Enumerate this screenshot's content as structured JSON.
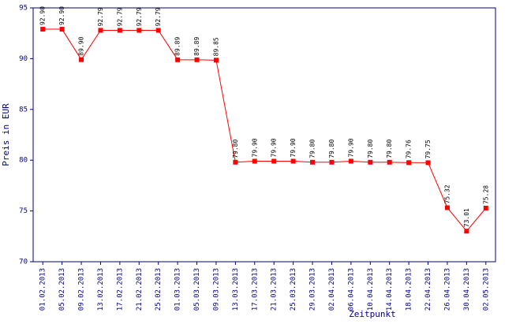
{
  "chart_data": {
    "type": "line",
    "x_label": "Zeitpunkt",
    "y_label": "Preis in EUR",
    "categories": [
      "01.02.2013",
      "05.02.2013",
      "09.02.2013",
      "13.02.2013",
      "17.02.2013",
      "21.02.2013",
      "25.02.2013",
      "01.03.2013",
      "05.03.2013",
      "09.03.2013",
      "13.03.2013",
      "17.03.2013",
      "21.03.2013",
      "25.03.2013",
      "29.03.2013",
      "02.04.2013",
      "06.04.2013",
      "10.04.2013",
      "14.04.2013",
      "18.04.2013",
      "22.04.2013",
      "26.04.2013",
      "30.04.2013",
      "02.05.2013"
    ],
    "values": [
      92.9,
      92.9,
      89.9,
      92.79,
      92.79,
      92.79,
      92.79,
      89.89,
      89.89,
      89.85,
      79.8,
      79.9,
      79.9,
      79.9,
      79.8,
      79.8,
      79.9,
      79.8,
      79.8,
      79.76,
      79.75,
      75.32,
      73.01,
      75.28
    ],
    "value_labels": [
      "92.90",
      "92.90",
      "89.90",
      "92.79",
      "92.79",
      "92.79",
      "92.79",
      "89.89",
      "89.89",
      "89.85",
      "79.80",
      "79.90",
      "79.90",
      "79.90",
      "79.80",
      "79.80",
      "79.90",
      "79.80",
      "79.80",
      "79.76",
      "79.75",
      "75.32",
      "73.01",
      "75.28"
    ],
    "color": "#ff0000",
    "axis_color": "#000080",
    "ylim": [
      70,
      95
    ],
    "yticks": [
      70,
      75,
      80,
      85,
      90,
      95
    ]
  }
}
